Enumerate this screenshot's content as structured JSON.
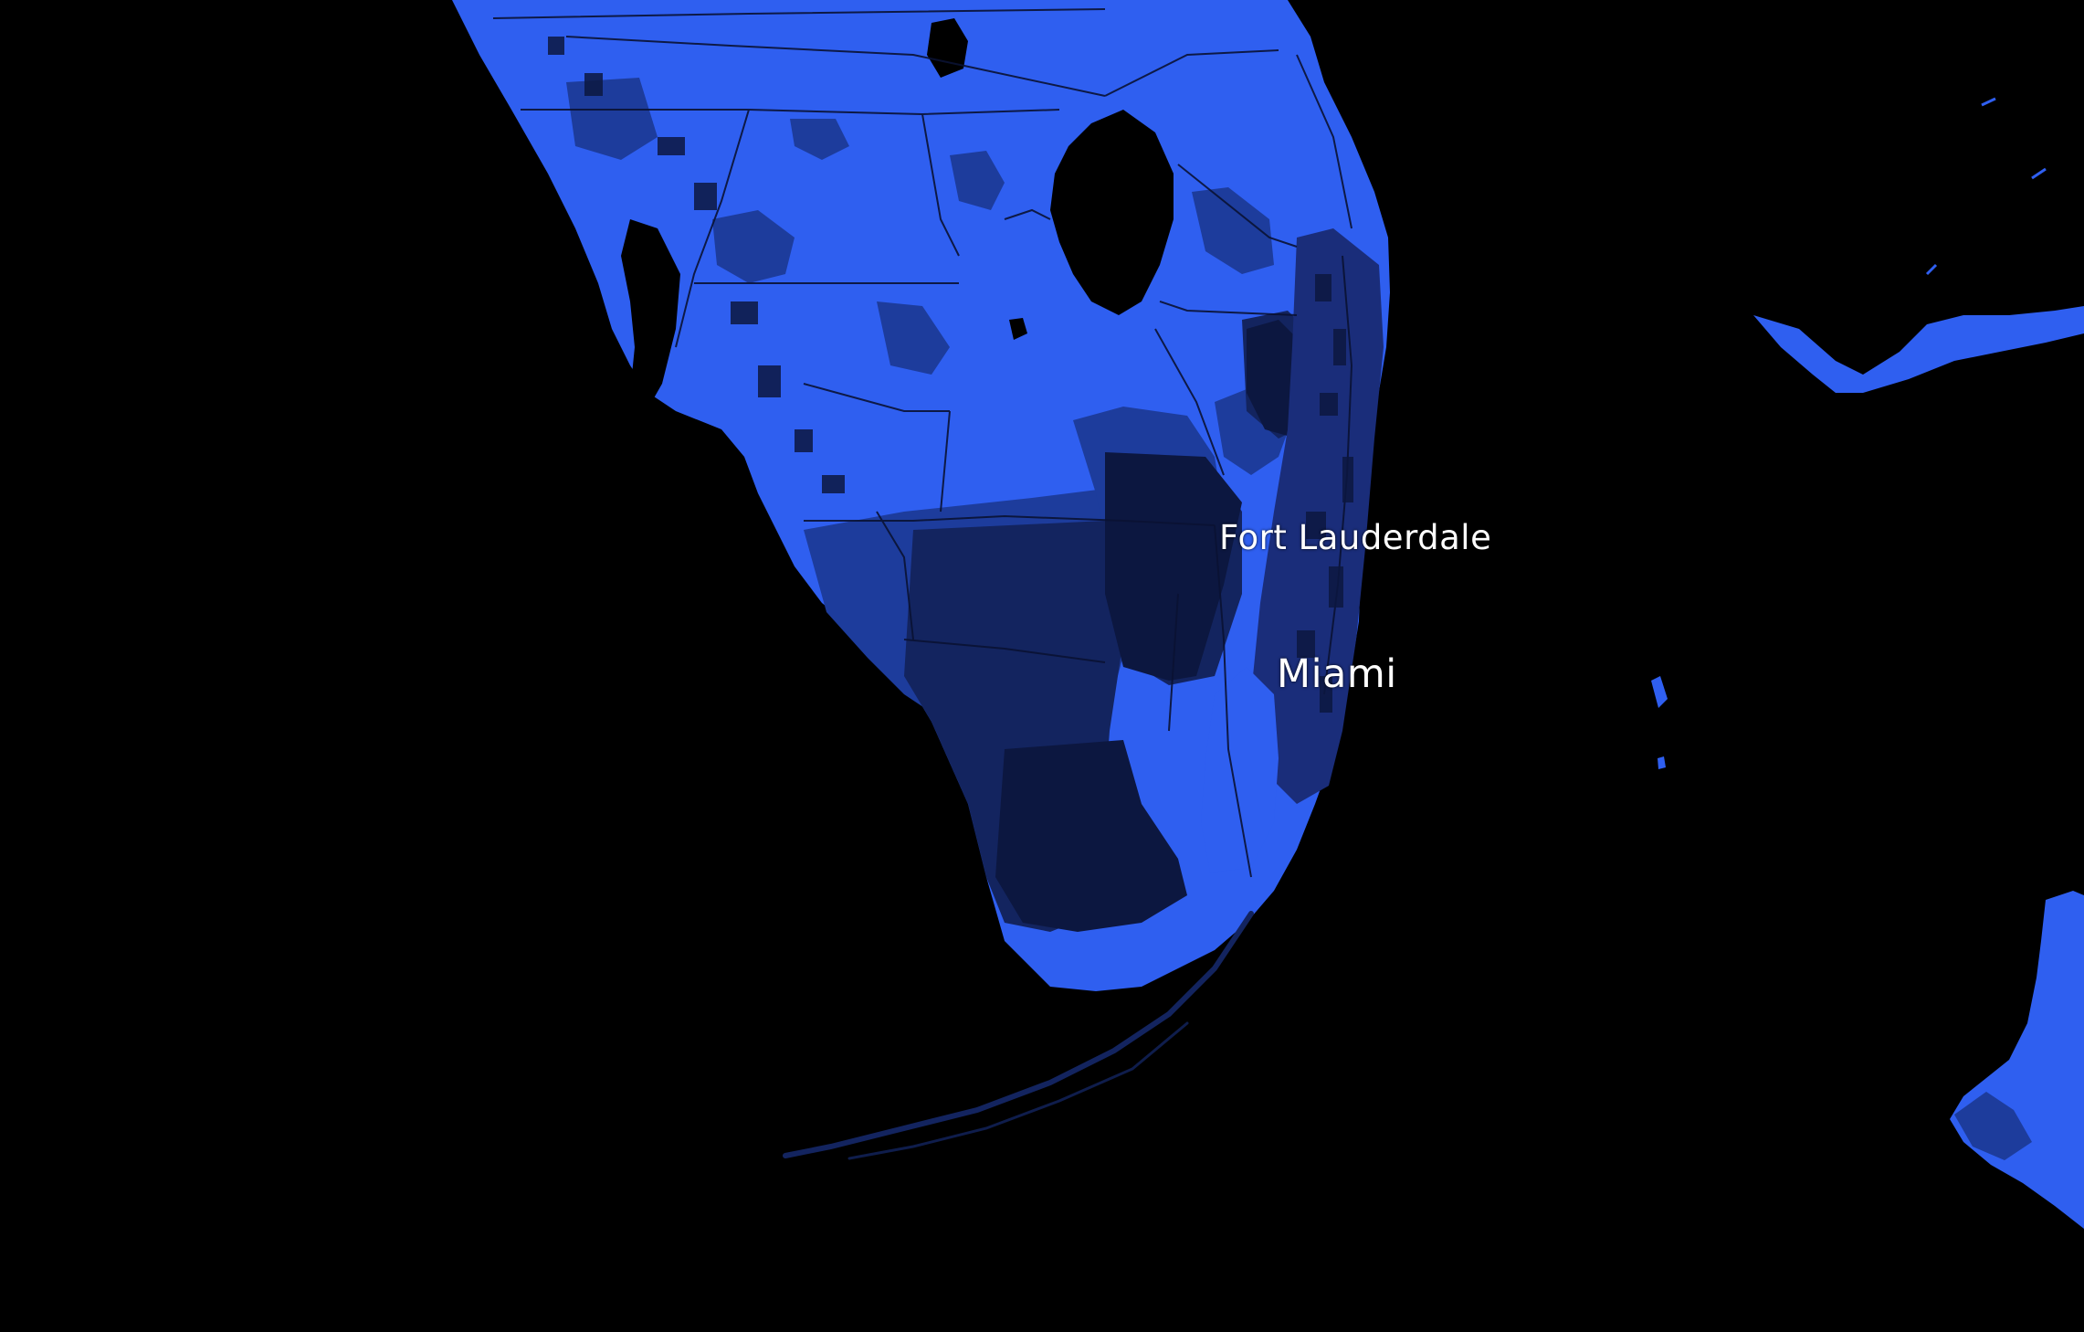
{
  "map": {
    "labels": {
      "fort_lauderdale": "Fort Lauderdale",
      "miami": "Miami"
    },
    "colors": {
      "background": "#000000",
      "land_bright": "#2f5ff0",
      "land_mid": "#1d3c9c",
      "land_dark": "#13245f",
      "land_darkest": "#0c1740",
      "roads": "#0a1233",
      "label_text": "#ffffff"
    }
  }
}
